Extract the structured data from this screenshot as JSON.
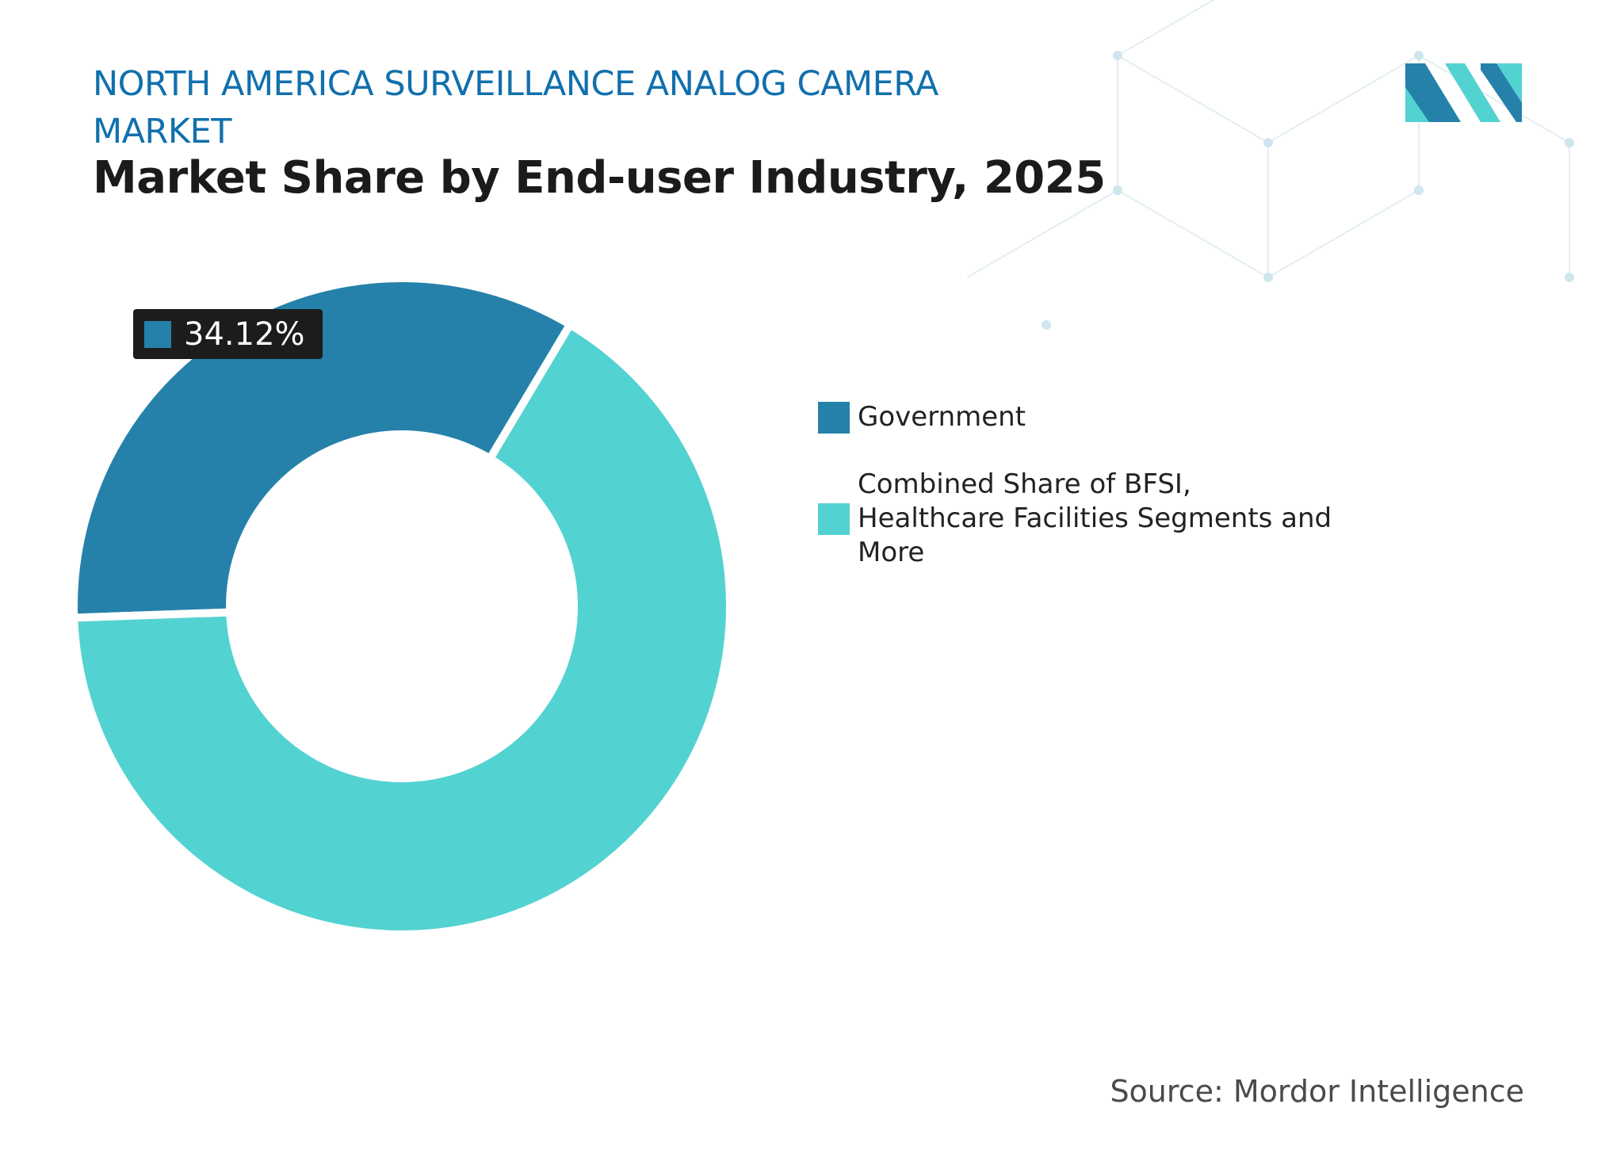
{
  "chart_data": {
    "type": "donut",
    "title": "NORTH AMERICA SURVEILLANCE ANALOG CAMERA MARKET",
    "subtitle": "Market Share by End-user Industry, 2025",
    "categories": [
      "Government",
      "Combined Share of BFSI, Healthcare Facilities Segments and More"
    ],
    "values": [
      34.12,
      65.88
    ],
    "value_labels": [
      "34.12%",
      null
    ],
    "colors": [
      "#2581a9",
      "#53d2d2"
    ],
    "source": "Source: Mordor Intelligence"
  }
}
